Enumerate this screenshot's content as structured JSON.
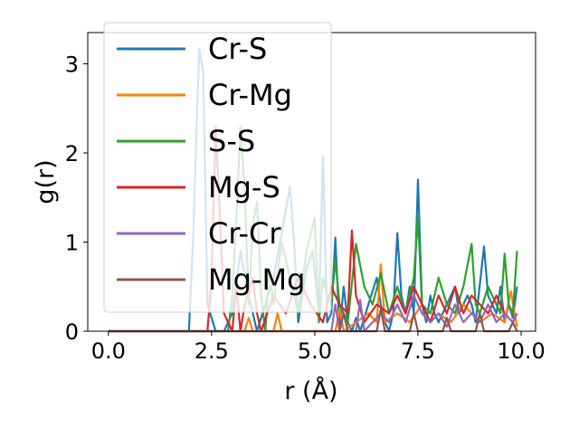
{
  "chart_data": {
    "type": "line",
    "xlabel": "r (Å)",
    "ylabel": "g(r)",
    "xlim": [
      -0.5,
      10.35
    ],
    "ylim": [
      0,
      3.35
    ],
    "xticks": [
      0.0,
      2.5,
      5.0,
      7.5,
      10.0
    ],
    "xtick_labels": [
      "0.0",
      "2.5",
      "5.0",
      "7.5",
      "10.0"
    ],
    "yticks": [
      0,
      1,
      2,
      3
    ],
    "ytick_labels": [
      "0",
      "1",
      "2",
      "3"
    ],
    "grid": false,
    "legend_position": "top-left",
    "series": [
      {
        "name": "Cr-S",
        "color": "#1f77b4",
        "x": [
          0.0,
          1.95,
          2.05,
          2.2,
          2.3,
          2.4,
          2.6,
          2.8,
          3.0,
          3.2,
          3.4,
          3.6,
          3.8,
          4.0,
          4.2,
          4.4,
          4.5,
          4.6,
          4.8,
          4.95,
          5.1,
          5.2,
          5.3,
          5.4,
          5.5,
          5.6,
          5.7,
          5.8,
          5.9,
          6.0,
          6.1,
          6.3,
          6.5,
          6.6,
          6.7,
          6.8,
          6.9,
          7.0,
          7.1,
          7.2,
          7.3,
          7.4,
          7.5,
          7.6,
          7.7,
          7.8,
          7.9,
          8.0,
          8.2,
          8.4,
          8.5,
          8.7,
          8.8,
          8.9,
          9.1,
          9.2,
          9.4,
          9.5,
          9.6,
          9.7,
          9.8,
          9.9
        ],
        "y": [
          0.0,
          0.0,
          1.0,
          3.17,
          2.9,
          0.3,
          0.0,
          0.0,
          0.2,
          0.9,
          0.4,
          0.0,
          0.3,
          0.6,
          1.1,
          1.62,
          1.0,
          0.1,
          0.7,
          0.9,
          0.2,
          1.97,
          0.1,
          0.2,
          1.05,
          0.0,
          0.5,
          0.1,
          0.0,
          0.15,
          0.0,
          0.3,
          0.6,
          0.3,
          0.1,
          0.0,
          0.2,
          1.1,
          0.4,
          0.2,
          0.5,
          0.2,
          1.7,
          0.3,
          0.1,
          0.4,
          0.2,
          0.1,
          0.3,
          0.5,
          0.2,
          0.4,
          0.3,
          0.1,
          0.95,
          0.4,
          0.2,
          0.5,
          0.1,
          0.3,
          0.15,
          0.5
        ]
      },
      {
        "name": "Cr-Mg",
        "color": "#ff7f0e",
        "x": [
          0.0,
          3.3,
          3.4,
          3.5,
          4.0,
          4.1,
          4.2,
          5.5,
          5.6,
          5.7,
          6.0,
          6.3,
          6.5,
          6.6,
          6.7,
          7.0,
          7.3,
          7.6,
          7.8,
          8.0,
          8.3,
          8.6,
          9.0,
          9.3,
          9.6,
          9.75,
          9.9
        ],
        "y": [
          0.0,
          0.0,
          0.15,
          0.0,
          0.0,
          0.2,
          0.0,
          0.0,
          0.25,
          0.0,
          0.1,
          0.2,
          0.1,
          0.75,
          0.1,
          0.2,
          0.1,
          0.3,
          0.1,
          0.2,
          0.1,
          0.3,
          0.1,
          0.2,
          0.1,
          0.45,
          0.05
        ]
      },
      {
        "name": "S-S",
        "color": "#2ca02c",
        "x": [
          0.0,
          2.9,
          3.0,
          3.1,
          3.2,
          3.3,
          3.4,
          3.5,
          3.6,
          3.7,
          3.8,
          3.9,
          4.0,
          4.2,
          4.4,
          4.6,
          4.8,
          5.0,
          5.1,
          5.2,
          5.3,
          5.4,
          5.5,
          5.6,
          5.8,
          6.0,
          6.2,
          6.4,
          6.6,
          6.8,
          7.0,
          7.2,
          7.4,
          7.5,
          7.6,
          7.8,
          8.0,
          8.2,
          8.4,
          8.6,
          8.8,
          8.9,
          9.0,
          9.2,
          9.4,
          9.5,
          9.6,
          9.7,
          9.8,
          9.9
        ],
        "y": [
          0.0,
          0.0,
          0.4,
          1.25,
          2.3,
          1.6,
          0.3,
          1.2,
          1.45,
          0.4,
          0.0,
          0.7,
          0.3,
          1.0,
          0.6,
          0.2,
          0.9,
          1.27,
          0.1,
          0.6,
          0.4,
          0.3,
          0.8,
          0.3,
          0.1,
          0.98,
          0.5,
          0.3,
          0.65,
          0.2,
          0.5,
          0.2,
          0.6,
          1.27,
          0.3,
          0.2,
          0.6,
          0.3,
          0.2,
          0.5,
          0.98,
          0.3,
          0.2,
          0.5,
          0.3,
          0.2,
          0.87,
          0.3,
          0.2,
          0.9
        ]
      },
      {
        "name": "Mg-S",
        "color": "#d62728",
        "x": [
          0.0,
          2.4,
          2.5,
          2.6,
          2.7,
          2.8,
          3.0,
          3.1,
          3.2,
          3.3,
          3.5,
          3.6,
          3.7,
          4.0,
          4.3,
          4.6,
          4.9,
          5.2,
          5.4,
          5.6,
          5.8,
          5.9,
          6.0,
          6.2,
          6.5,
          6.8,
          7.0,
          7.2,
          7.4,
          7.6,
          7.8,
          8.0,
          8.2,
          8.4,
          8.6,
          8.8,
          9.0,
          9.2,
          9.4,
          9.6,
          9.8,
          9.9
        ],
        "y": [
          0.0,
          0.0,
          0.6,
          2.3,
          1.3,
          0.2,
          0.0,
          0.5,
          0.0,
          0.3,
          0.6,
          0.2,
          0.0,
          0.4,
          0.2,
          0.6,
          0.3,
          0.1,
          0.5,
          0.3,
          0.2,
          1.13,
          0.4,
          0.1,
          0.3,
          0.2,
          0.4,
          0.2,
          0.5,
          0.3,
          0.1,
          0.4,
          0.2,
          0.5,
          0.2,
          0.4,
          0.3,
          0.2,
          0.4,
          0.2,
          0.1,
          0.2
        ]
      },
      {
        "name": "Cr-Cr",
        "color": "#9467bd",
        "x": [
          0.0,
          5.4,
          5.5,
          5.6,
          6.0,
          6.1,
          6.2,
          6.6,
          6.8,
          7.0,
          7.2,
          7.4,
          7.6,
          7.8,
          8.0,
          8.2,
          8.4,
          8.6,
          8.8,
          9.0,
          9.2,
          9.4,
          9.6,
          9.8,
          9.9
        ],
        "y": [
          0.0,
          0.0,
          0.3,
          0.0,
          0.0,
          0.35,
          0.0,
          0.2,
          0.1,
          0.3,
          0.1,
          0.4,
          0.2,
          0.1,
          0.2,
          0.05,
          0.3,
          0.1,
          0.2,
          0.1,
          0.3,
          0.1,
          0.2,
          0.1,
          0.2
        ]
      },
      {
        "name": "Mg-Mg",
        "color": "#8c564b",
        "x": [
          0.0,
          5.6,
          5.7,
          5.8,
          6.5,
          6.6,
          6.7,
          7.3,
          7.4,
          7.5,
          8.1,
          8.2,
          8.3,
          8.9,
          9.0,
          9.1,
          9.7,
          9.8,
          9.9
        ],
        "y": [
          0.0,
          0.0,
          0.2,
          0.0,
          0.0,
          0.25,
          0.0,
          0.0,
          0.2,
          0.0,
          0.0,
          0.15,
          0.0,
          0.0,
          0.2,
          0.0,
          0.0,
          0.1,
          0.0
        ]
      }
    ]
  }
}
